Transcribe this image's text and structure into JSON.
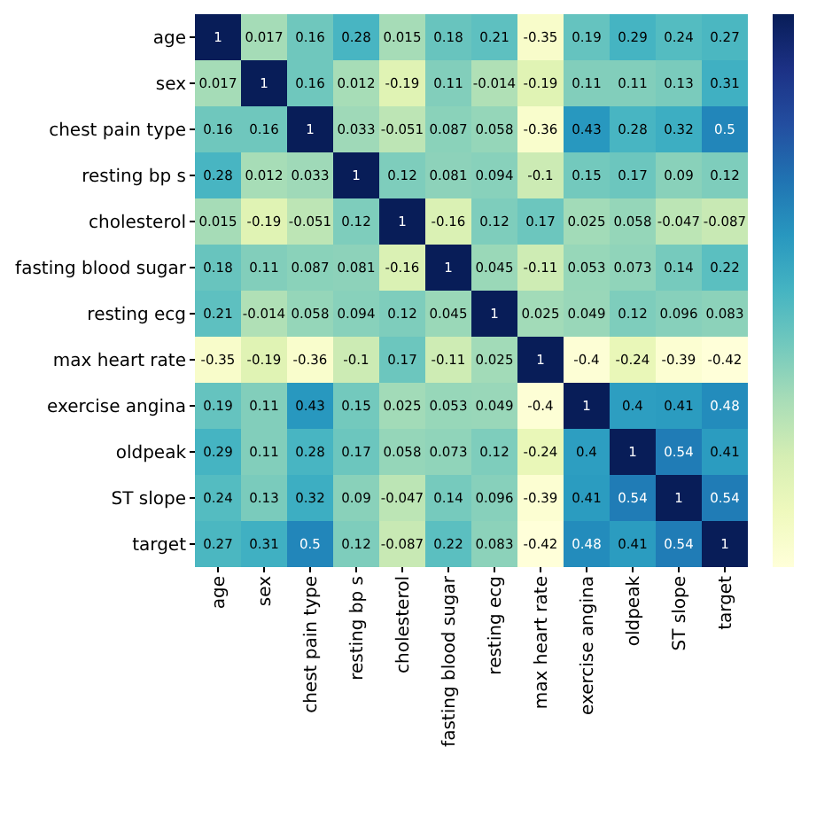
{
  "chart_data": {
    "type": "heatmap",
    "categories": [
      "age",
      "sex",
      "chest pain type",
      "resting bp s",
      "cholesterol",
      "fasting blood sugar",
      "resting ecg",
      "max heart rate",
      "exercise angina",
      "oldpeak",
      "ST slope",
      "target"
    ],
    "y_categories": [
      "age",
      "sex",
      "chest pain type",
      "resting bp s",
      "cholesterol",
      "fasting blood sugar",
      "resting ecg",
      "max heart rate",
      "exercise angina",
      "oldpeak",
      "ST slope",
      "target"
    ],
    "cells": [
      [
        1,
        0.017,
        0.16,
        0.28,
        0.015,
        0.18,
        0.21,
        -0.35,
        0.19,
        0.29,
        0.24,
        0.27
      ],
      [
        0.017,
        1,
        0.16,
        0.012,
        -0.19,
        0.11,
        -0.014,
        -0.19,
        0.11,
        0.11,
        0.13,
        0.31
      ],
      [
        0.16,
        0.16,
        1,
        0.033,
        -0.051,
        0.087,
        0.058,
        -0.36,
        0.43,
        0.28,
        0.32,
        0.5
      ],
      [
        0.28,
        0.012,
        0.033,
        1,
        0.12,
        0.081,
        0.094,
        -0.1,
        0.15,
        0.17,
        0.09,
        0.12
      ],
      [
        0.015,
        -0.19,
        -0.051,
        0.12,
        1,
        -0.16,
        0.12,
        0.17,
        0.025,
        0.058,
        -0.047,
        -0.087
      ],
      [
        0.18,
        0.11,
        0.087,
        0.081,
        -0.16,
        1,
        0.045,
        -0.11,
        0.053,
        0.073,
        0.14,
        0.22
      ],
      [
        0.21,
        -0.014,
        0.058,
        0.094,
        0.12,
        0.045,
        1,
        0.025,
        0.049,
        0.12,
        0.096,
        0.083
      ],
      [
        -0.35,
        -0.19,
        -0.36,
        -0.1,
        0.17,
        -0.11,
        0.025,
        1,
        -0.4,
        -0.24,
        -0.39,
        -0.42
      ],
      [
        0.19,
        0.11,
        0.43,
        0.15,
        0.025,
        0.053,
        0.049,
        -0.4,
        1,
        0.4,
        0.41,
        0.48
      ],
      [
        0.29,
        0.11,
        0.28,
        0.17,
        0.058,
        0.073,
        0.12,
        -0.24,
        0.4,
        1,
        0.54,
        0.41
      ],
      [
        0.24,
        0.13,
        0.32,
        0.09,
        -0.047,
        0.14,
        0.096,
        -0.39,
        0.41,
        0.54,
        1,
        0.54
      ],
      [
        0.27,
        0.31,
        0.5,
        0.12,
        -0.087,
        0.22,
        0.083,
        -0.42,
        0.48,
        0.41,
        0.54,
        1
      ]
    ],
    "data_labels": true
  }
}
